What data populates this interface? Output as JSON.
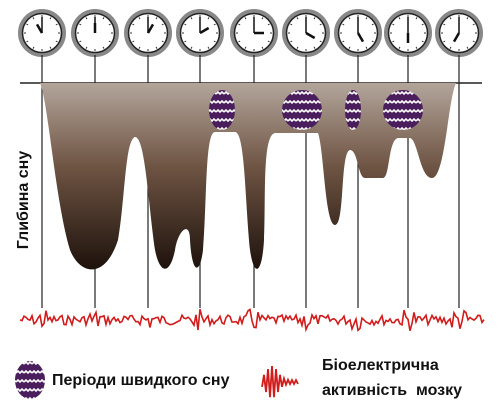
{
  "axis_label": "Глибина сну",
  "legend": {
    "rem": "Періоди швидкого сну",
    "eeg": [
      "Біоелектрична",
      "активність  мозку"
    ]
  }
}
